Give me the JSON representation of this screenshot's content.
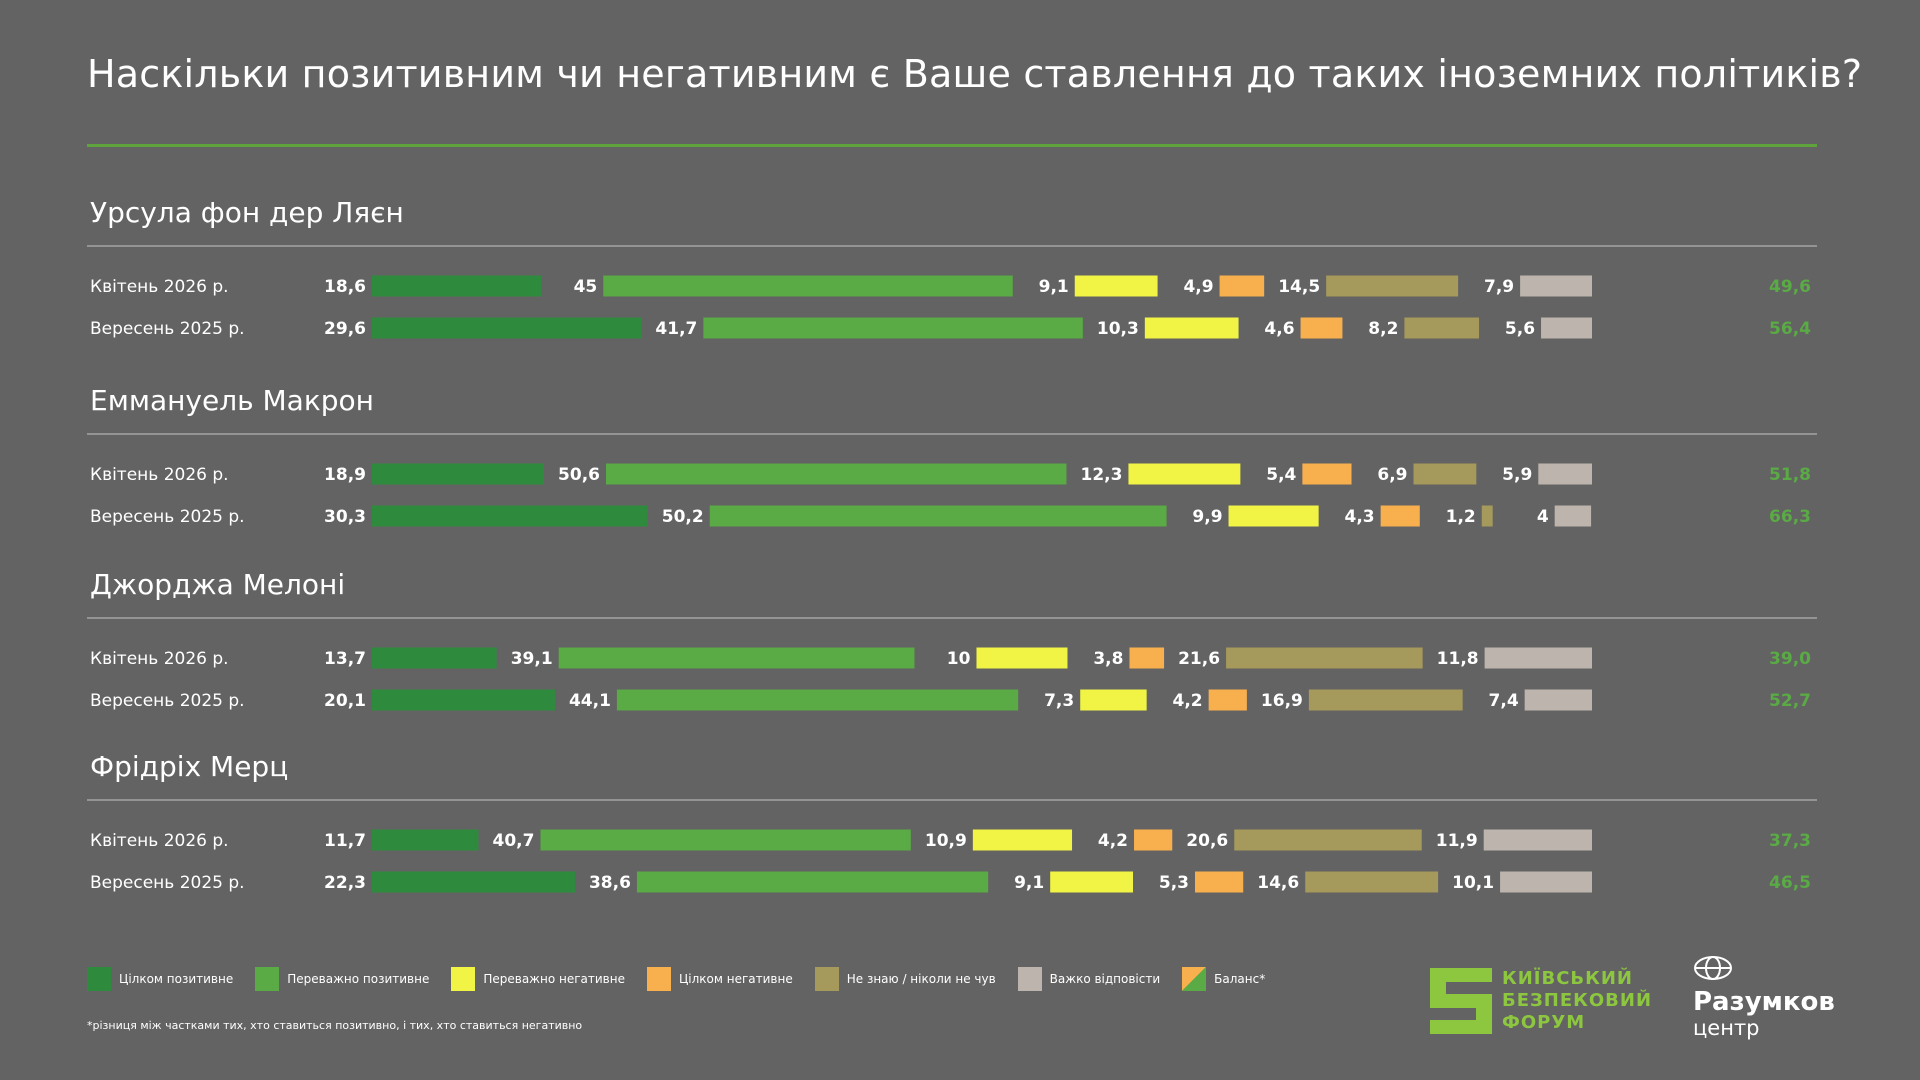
{
  "title": "Наскільки позитивним чи негативним є Ваше ставлення до таких іноземних політиків?",
  "colors": {
    "background": "#636363",
    "accent": "#5fa33c",
    "fully_positive": "#2e8b3e",
    "mostly_positive": "#5aaa45",
    "mostly_negative": "#f1f444",
    "fully_negative": "#f8b04f",
    "dont_know": "#a59a5b",
    "hard_to_say": "#bdb5ad",
    "balance_text": "#5aaa45"
  },
  "chart_data": {
    "type": "bar",
    "subtype": "stacked-horizontal-separated",
    "series_names": [
      "Цілком позитивне",
      "Переважно позитивне",
      "Переважно негативне",
      "Цілком негативне",
      "Не знаю / ніколи не чув",
      "Важко відповісти"
    ],
    "groups": [
      {
        "name": "Урсула фон дер Ляєн",
        "rows": [
          {
            "label": "Квітень  2026 р.",
            "values": [
              18.6,
              45,
              9.1,
              4.9,
              14.5,
              7.9
            ],
            "labels": [
              "18,6",
              "45",
              "9,1",
              "4,9",
              "14,5",
              "7,9"
            ],
            "balance": "49,6"
          },
          {
            "label": "Вересень 2025 р.",
            "values": [
              29.6,
              41.7,
              10.3,
              4.6,
              8.2,
              5.6
            ],
            "labels": [
              "29,6",
              "41,7",
              "10,3",
              "4,6",
              "8,2",
              "5,6"
            ],
            "balance": "56,4"
          }
        ]
      },
      {
        "name": "Еммануель Макрон",
        "rows": [
          {
            "label": "Квітень  2026 р.",
            "values": [
              18.9,
              50.6,
              12.3,
              5.4,
              6.9,
              5.9
            ],
            "labels": [
              "18,9",
              "50,6",
              "12,3",
              "5,4",
              "6,9",
              "5,9"
            ],
            "balance": "51,8"
          },
          {
            "label": "Вересень 2025 р.",
            "values": [
              30.3,
              50.2,
              9.9,
              4.3,
              1.2,
              4
            ],
            "labels": [
              "30,3",
              "50,2",
              "9,9",
              "4,3",
              "1,2",
              "4"
            ],
            "balance": "66,3"
          }
        ]
      },
      {
        "name": "Джорджа Мелоні",
        "rows": [
          {
            "label": "Квітень  2026 р.",
            "values": [
              13.7,
              39.1,
              10,
              3.8,
              21.6,
              11.8
            ],
            "labels": [
              "13,7",
              "39,1",
              "10",
              "3,8",
              "21,6",
              "11,8"
            ],
            "balance": "39,0"
          },
          {
            "label": "Вересень 2025 р.",
            "values": [
              20.1,
              44.1,
              7.3,
              4.2,
              16.9,
              7.4
            ],
            "labels": [
              "20,1",
              "44,1",
              "7,3",
              "4,2",
              "16,9",
              "7,4"
            ],
            "balance": "52,7"
          }
        ]
      },
      {
        "name": "Фрідріх Мерц",
        "rows": [
          {
            "label": "Квітень  2026 р.",
            "values": [
              11.7,
              40.7,
              10.9,
              4.2,
              20.6,
              11.9
            ],
            "labels": [
              "11,7",
              "40,7",
              "10,9",
              "4,2",
              "20,6",
              "11,9"
            ],
            "balance": "37,3"
          },
          {
            "label": "Вересень 2025 р.",
            "values": [
              22.3,
              38.6,
              9.1,
              5.3,
              14.6,
              10.1
            ],
            "labels": [
              "22,3",
              "38,6",
              "9,1",
              "5,3",
              "14,6",
              "10,1"
            ],
            "balance": "46,5"
          }
        ]
      }
    ]
  },
  "legend": {
    "fully_positive": "Цілком позитивне",
    "mostly_positive": "Переважно позитивне",
    "mostly_negative": "Переважно негативне",
    "fully_negative": "Цілком негативне",
    "dont_know": "Не знаю / ніколи не чув",
    "hard_to_say": "Важко відповісти",
    "balance": "Баланс*"
  },
  "footnote": "*різниця між частками тих, хто ставиться позитивно, і тих, хто ставиться негативно",
  "logos": {
    "kbf_line1": "КИЇВСЬКИЙ",
    "kbf_line2": "БЕЗПЕКОВИЙ",
    "kbf_line3": "ФОРУМ",
    "razumkov_name": "Разумков",
    "razumkov_sub": "центр"
  }
}
